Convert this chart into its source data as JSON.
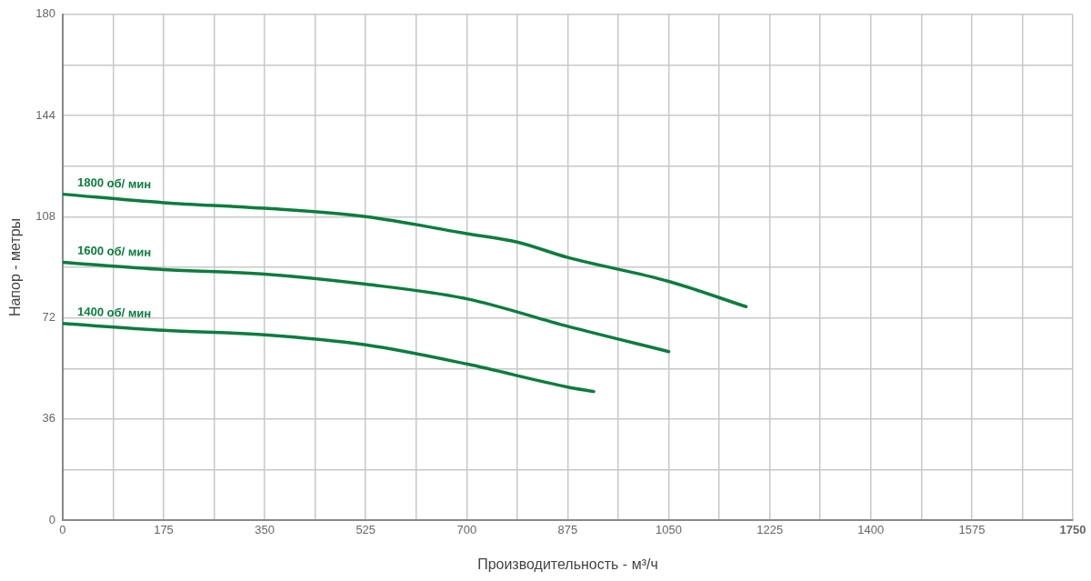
{
  "chart_data": {
    "type": "line",
    "xlabel": "Производительность - м³/ч",
    "ylabel": "Напор - метры",
    "xlim": [
      0,
      1750
    ],
    "ylim": [
      0,
      180
    ],
    "xticks": [
      0,
      {
        "value": 87.5,
        "label": null
      },
      175,
      {
        "value": 262.5,
        "label": null
      },
      350,
      {
        "value": 437.5,
        "label": null
      },
      525,
      {
        "value": 612.5,
        "label": null
      },
      700,
      {
        "value": 787.5,
        "label": null
      },
      875,
      {
        "value": 962.5,
        "label": null
      },
      1050,
      {
        "value": 1137.5,
        "label": null
      },
      1225,
      {
        "value": 1312.5,
        "label": null
      },
      1400,
      {
        "value": 1487.5,
        "label": null
      },
      1575,
      {
        "value": 1662.5,
        "label": null
      },
      1750
    ],
    "yticks": [
      0,
      {
        "value": 18,
        "label": null
      },
      36,
      {
        "value": 54,
        "label": null
      },
      72,
      {
        "value": 90,
        "label": null
      },
      108,
      {
        "value": 126,
        "label": null
      },
      144,
      {
        "value": 162,
        "label": null
      },
      180
    ],
    "grid": true,
    "legend": false,
    "marker": "none",
    "line_style": "solid",
    "series": [
      {
        "name": "1800 об/ мин",
        "color": "#0b7d3e",
        "x": [
          0,
          175,
          350,
          525,
          700,
          787.5,
          875,
          1050,
          1184
        ],
        "values": [
          116,
          113,
          111,
          108,
          102,
          99,
          93.5,
          85,
          76
        ]
      },
      {
        "name": "1600 об/ мин",
        "color": "#0b7d3e",
        "x": [
          0,
          175,
          350,
          525,
          700,
          875,
          1050
        ],
        "values": [
          91.8,
          89.2,
          87.6,
          84,
          78.8,
          69,
          60
        ]
      },
      {
        "name": "1400 об/ мин",
        "color": "#0b7d3e",
        "x": [
          0,
          175,
          350,
          525,
          700,
          875,
          920
        ],
        "values": [
          70,
          67.6,
          66,
          62.4,
          55.6,
          47.4,
          45.8
        ]
      }
    ]
  }
}
